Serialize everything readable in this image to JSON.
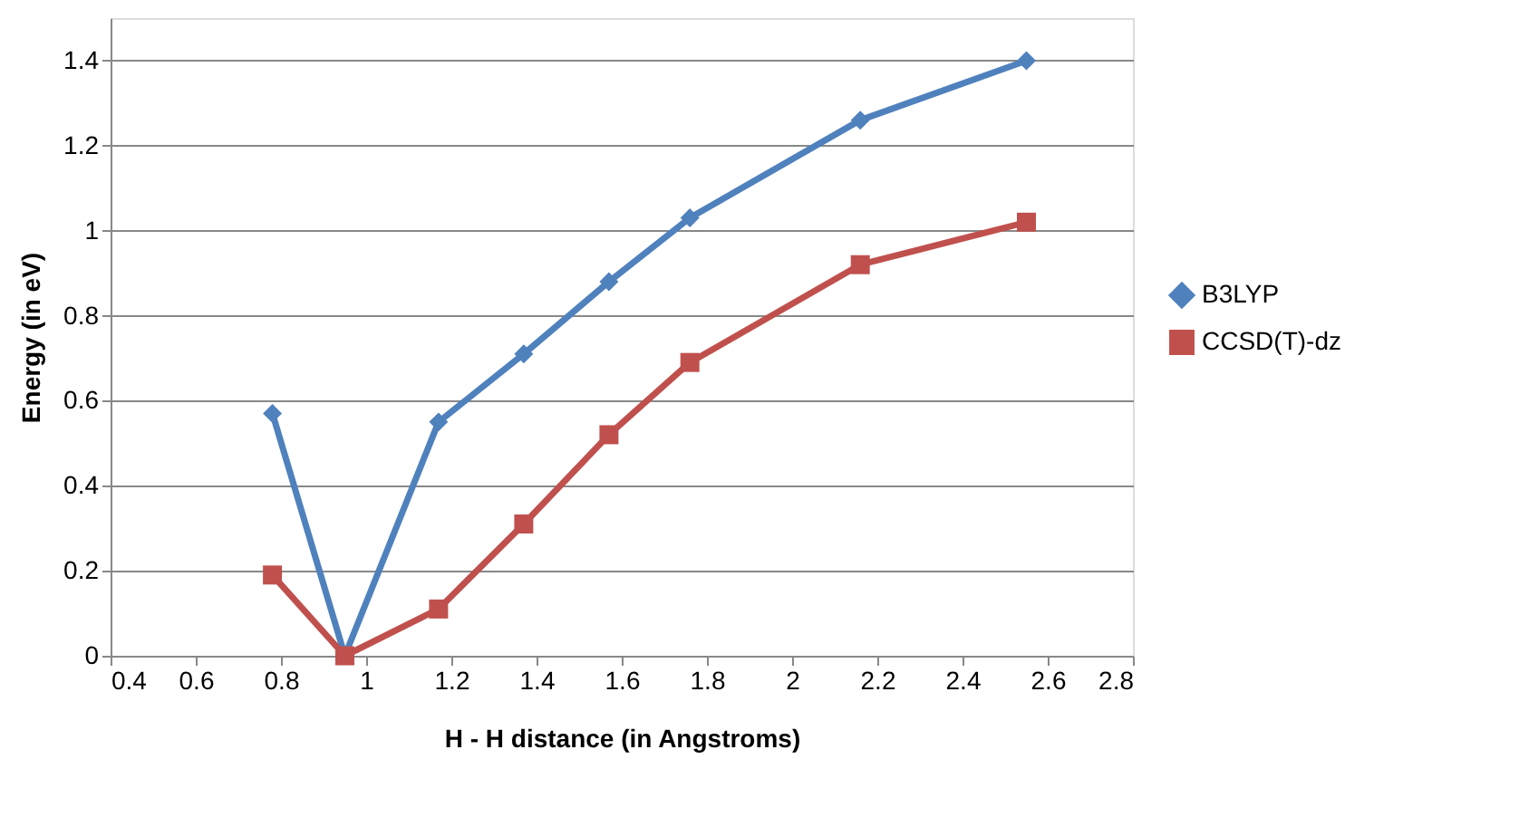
{
  "chart_data": {
    "type": "line",
    "xlabel": "H - H distance (in Angstroms)",
    "ylabel": "Energy (in eV)",
    "xlim": [
      0.4,
      2.8
    ],
    "xticks": [
      0.4,
      0.6,
      0.8,
      1,
      1.2,
      1.4,
      1.6,
      1.8,
      2,
      2.2,
      2.4,
      2.6,
      2.8
    ],
    "ylim": [
      0,
      1.5
    ],
    "yticks": [
      0,
      0.2,
      0.4,
      0.6,
      0.8,
      1,
      1.2,
      1.4
    ],
    "grid": "y",
    "legend": "right",
    "line_style": "solid",
    "series": [
      {
        "name": "B3LYP",
        "color": "#4f81bd",
        "marker": "diamond",
        "x": [
          0.78,
          0.95,
          1.17,
          1.37,
          1.57,
          1.76,
          2.16,
          2.55
        ],
        "values": [
          0.57,
          0,
          0.55,
          0.71,
          0.88,
          1.03,
          1.26,
          1.4
        ]
      },
      {
        "name": "CCSD(T)-dz",
        "color": "#c0504d",
        "marker": "square",
        "x": [
          0.78,
          0.95,
          1.17,
          1.37,
          1.57,
          1.76,
          2.16,
          2.55
        ],
        "values": [
          0.19,
          0,
          0.11,
          0.31,
          0.52,
          0.69,
          0.92,
          1.02
        ]
      }
    ]
  }
}
